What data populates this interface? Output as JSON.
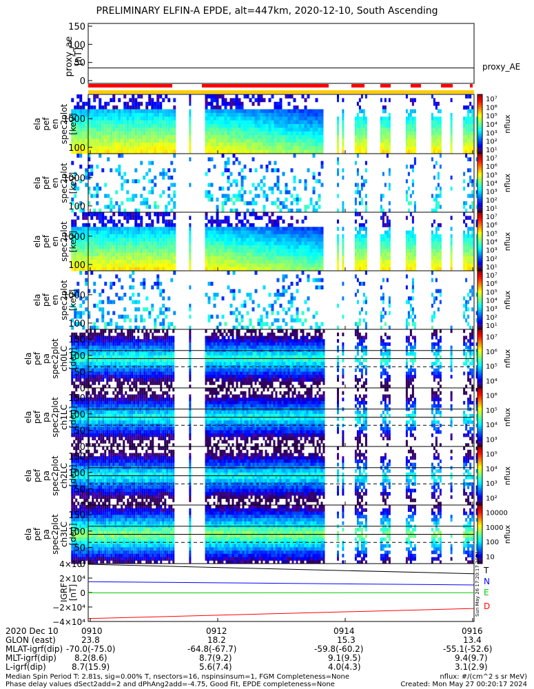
{
  "title": "PRELIMINARY ELFIN-A EPDE, alt=447km, 2020-12-10, South Ascending",
  "chart_data": [
    {
      "type": "line",
      "panel": "proxy_ae",
      "ylabel_lines": [
        "proxy_ae",
        "[nT]"
      ],
      "ylim": [
        0,
        150
      ],
      "yticks": [
        "0",
        "50",
        "100",
        "150"
      ],
      "legend": [
        "proxy_AE"
      ],
      "series": [
        {
          "name": "proxy_AE",
          "x": [
            "0909.7",
            "0916.1"
          ],
          "values": [
            35,
            35
          ],
          "color": "#000000"
        }
      ]
    },
    {
      "type": "heatmap",
      "panel": "spectrogram-1",
      "ylabel_lines": [
        "ela",
        "pef",
        "en",
        "spec2plot",
        "[keV]"
      ],
      "log_y": true,
      "yticks": [
        "100",
        "1000"
      ],
      "colorbar": {
        "label": "nflux",
        "ticks": [
          "10¹",
          "10²",
          "10³",
          "10⁴",
          "10⁵",
          "10⁶",
          "10⁷"
        ]
      }
    },
    {
      "type": "heatmap",
      "panel": "spectrogram-2",
      "ylabel_lines": [
        "ela",
        "pef",
        "en",
        "spec2plot",
        "[keV]"
      ],
      "log_y": true,
      "yticks": [
        "100",
        "1000"
      ],
      "colorbar": {
        "label": "nflux",
        "ticks": [
          "10¹",
          "10²",
          "10³",
          "10⁴",
          "10⁵",
          "10⁶",
          "10⁷"
        ]
      }
    },
    {
      "type": "heatmap",
      "panel": "spectrogram-3",
      "ylabel_lines": [
        "ela",
        "pef",
        "en",
        "spec2plot",
        "[keV]"
      ],
      "log_y": true,
      "yticks": [
        "100",
        "1000"
      ],
      "colorbar": {
        "label": "nflux",
        "ticks": [
          "10¹",
          "10²",
          "10³",
          "10⁴",
          "10⁵",
          "10⁶",
          "10⁷"
        ]
      }
    },
    {
      "type": "heatmap",
      "panel": "spectrogram-4",
      "ylabel_lines": [
        "ela",
        "pef",
        "en",
        "spec2plot",
        "[keV]"
      ],
      "log_y": true,
      "yticks": [
        "100",
        "1000"
      ],
      "colorbar": {
        "label": "nflux",
        "ticks": [
          "10¹",
          "10²",
          "10³",
          "10⁴",
          "10⁵",
          "10⁶",
          "10⁷"
        ]
      }
    },
    {
      "type": "heatmap",
      "panel": "pitch-angle-ch0",
      "ylabel_lines": [
        "ela",
        "pef",
        "pa",
        "spec2plot",
        "ch0LC",
        "[deg]"
      ],
      "ylim": [
        0,
        180
      ],
      "yticks": [
        "0",
        "50",
        "100",
        "150"
      ],
      "colorbar": {
        "label": "nflux",
        "ticks": [
          "10⁴",
          "10⁵",
          "10⁶",
          "10⁷"
        ]
      }
    },
    {
      "type": "heatmap",
      "panel": "pitch-angle-ch1",
      "ylabel_lines": [
        "ela",
        "pef",
        "pa",
        "spec2plot",
        "ch1LC",
        "[deg]"
      ],
      "ylim": [
        0,
        180
      ],
      "yticks": [
        "0",
        "50",
        "100",
        "150"
      ],
      "colorbar": {
        "label": "nflux",
        "ticks": [
          "10³",
          "10⁴",
          "10⁵",
          "10⁶"
        ]
      }
    },
    {
      "type": "heatmap",
      "panel": "pitch-angle-ch2",
      "ylabel_lines": [
        "ela",
        "pef",
        "pa",
        "spec2plot",
        "ch2LC",
        "[deg]"
      ],
      "ylim": [
        0,
        180
      ],
      "yticks": [
        "0",
        "50",
        "100",
        "150"
      ],
      "colorbar": {
        "label": "nflux",
        "ticks": [
          "10²",
          "10³",
          "10⁴",
          "10⁵"
        ]
      }
    },
    {
      "type": "heatmap",
      "panel": "pitch-angle-ch3",
      "ylabel_lines": [
        "ela",
        "pef",
        "pa",
        "spec2plot",
        "ch3LC",
        "[deg]"
      ],
      "ylim": [
        0,
        180
      ],
      "yticks": [
        "0",
        "50",
        "100",
        "150"
      ],
      "colorbar": {
        "label": "nflux",
        "ticks": [
          "10",
          "100",
          "1000",
          "10000"
        ]
      }
    },
    {
      "type": "line",
      "panel": "igrf",
      "ylabel_lines": [
        "IGRF",
        "[nT]"
      ],
      "ylim": [
        -40000,
        40000
      ],
      "yticks": [
        "−4×10⁴",
        "−2×10⁴",
        "0",
        "2×10⁴",
        "4×10⁴"
      ],
      "series": [
        {
          "name": "T",
          "x": [
            "0909.7",
            "0916.1"
          ],
          "values": [
            39000,
            26000
          ],
          "color": "#000000"
        },
        {
          "name": "N",
          "x": [
            "0909.7",
            "0916.1"
          ],
          "values": [
            15000,
            10500
          ],
          "color": "#0000ff"
        },
        {
          "name": "E",
          "x": [
            "0909.7",
            "0916.1"
          ],
          "values": [
            -500,
            -200
          ],
          "color": "#00cc00"
        },
        {
          "name": "D",
          "x": [
            "0909.7",
            "0916.1"
          ],
          "values": [
            -36000,
            -22000
          ],
          "color": "#ff0000"
        }
      ]
    }
  ],
  "xaxis": {
    "ticks": [
      "0910",
      "0912",
      "0914",
      "0916"
    ]
  },
  "orbit": {
    "date": "2020 Dec 10",
    "rows": [
      {
        "label": "GLON (east)",
        "values": [
          "23.8",
          "18.2",
          "15.3",
          "13.4"
        ]
      },
      {
        "label": "MLAT-igrf(dip)",
        "values": [
          "-70.0(-75.0)",
          "-64.8(-67.7)",
          "-59.8(-60.2)",
          "-55.1(-52.6)"
        ]
      },
      {
        "label": "MLT-igrf(dip)",
        "values": [
          "8.2(8.6)",
          "8.7(9.2)",
          "9.1(9.5)",
          "9.4(9.7)"
        ]
      },
      {
        "label": "L-igrf(dip)",
        "values": [
          "8.7(15.9)",
          "5.6(7.4)",
          "4.0(4.3)",
          "3.1(2.9)"
        ]
      }
    ]
  },
  "footer": {
    "line1": "Median Spin Period T: 2.81s, sig=0.00% T, nsectors=16, nspinsinsum=1, FGM Completeness=None",
    "line2": "Phase delay values dSect2add=2 and dPhAng2add=-4.75, Good Fit, EPDE completeness=None",
    "units": "nflux: #/(cm^2 s sr MeV)",
    "created": "Created: Mon May 27 00:20:17 2024",
    "stamp": "Sun May 26 17:20:17 2024"
  },
  "colors": {
    "segment_bar": "#ff0000",
    "status_bar": "#ffcc00"
  }
}
